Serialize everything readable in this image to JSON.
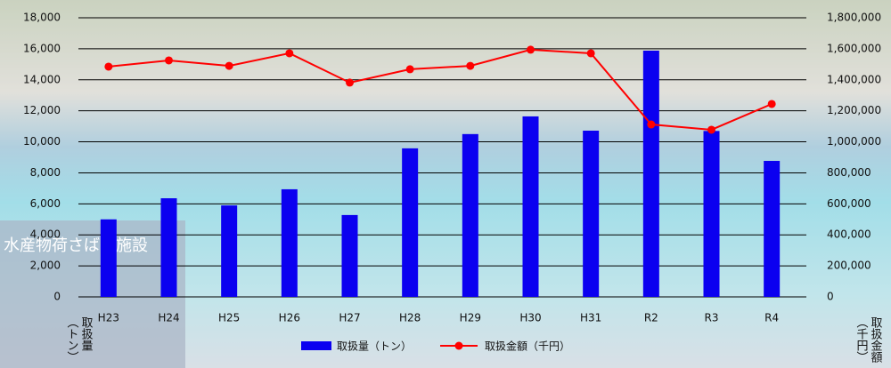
{
  "chart_data": {
    "type": "bar_line",
    "background_caption": "水産物荷さばき施設",
    "y_label_lines": [
      "取扱量",
      "（トン）"
    ],
    "y2_label_lines": [
      "取扱金額",
      "（千円）"
    ],
    "categories": [
      "H23",
      "H24",
      "H25",
      "H26",
      "H27",
      "H28",
      "H29",
      "H30",
      "H31",
      "R2",
      "R3",
      "R4"
    ],
    "series": [
      {
        "name": "取扱量（トン）",
        "type": "bar",
        "color": "#0b00f0",
        "values": [
          5000,
          6360,
          5900,
          6940,
          5280,
          9580,
          10500,
          11640,
          10720,
          15880,
          10700,
          8770
        ]
      },
      {
        "name": "取扱金額（千円）",
        "type": "line",
        "axis": "y2",
        "color": "#ff0000",
        "values": [
          1485000,
          1525000,
          1490000,
          1571000,
          1382000,
          1468000,
          1490000,
          1594000,
          1571000,
          1112000,
          1078000,
          1244000
        ]
      }
    ],
    "ylim": [
      0,
      18000
    ],
    "yticks": [
      0,
      {
        "value": 2000,
        "label": "2,000"
      },
      {
        "value": 4000,
        "label": "4,000"
      },
      {
        "value": 6000,
        "label": "6,000"
      },
      {
        "value": 8000,
        "label": "8,000"
      },
      {
        "value": 10000,
        "label": "10,000"
      },
      {
        "value": 12000,
        "label": "12,000"
      },
      {
        "value": 14000,
        "label": "14,000"
      },
      {
        "value": 16000,
        "label": "16,000"
      },
      {
        "value": 18000,
        "label": "18,000"
      }
    ],
    "y2lim": [
      0,
      1800000
    ],
    "y2ticks": [
      0,
      {
        "value": 200000,
        "label": "200,000"
      },
      {
        "value": 400000,
        "label": "400,000"
      },
      {
        "value": 600000,
        "label": "600,000"
      },
      {
        "value": 800000,
        "label": "800,000"
      },
      {
        "value": 1000000,
        "label": "1,000,000"
      },
      {
        "value": 1200000,
        "label": "1,200,000"
      },
      {
        "value": 1400000,
        "label": "1,400,000"
      },
      {
        "value": 1600000,
        "label": "1,600,000"
      },
      {
        "value": 1800000,
        "label": "1,800,000"
      }
    ],
    "grid": true
  }
}
